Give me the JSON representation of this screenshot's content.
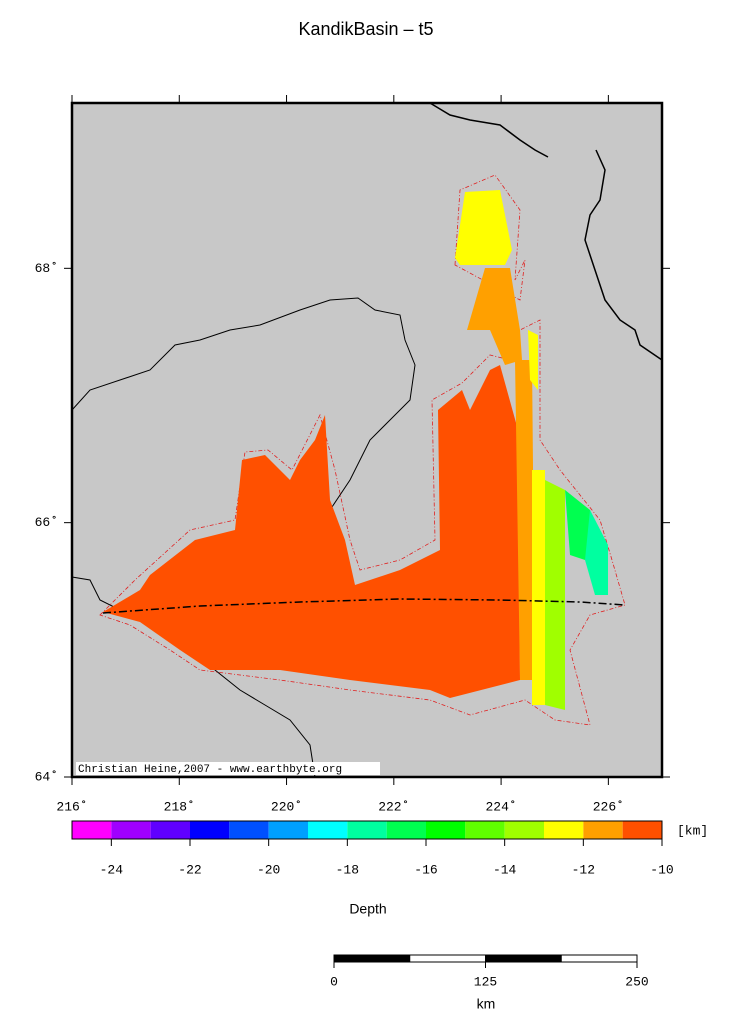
{
  "title": "KandikBasin – t5",
  "map": {
    "xlim": [
      216,
      227
    ],
    "ylim": [
      64,
      69.3
    ],
    "xticks": [
      {
        "value": 216,
        "label": "216˚"
      },
      {
        "value": 218,
        "label": "218˚"
      },
      {
        "value": 220,
        "label": "220˚"
      },
      {
        "value": 222,
        "label": "222˚"
      },
      {
        "value": 224,
        "label": "224˚"
      },
      {
        "value": 226,
        "label": "226˚"
      }
    ],
    "yticks": [
      {
        "value": 64,
        "label": "64˚"
      },
      {
        "value": 66,
        "label": "66˚"
      },
      {
        "value": 68,
        "label": "68˚"
      }
    ],
    "credit": "Christian Heine,2007 - www.earthbyte.org"
  },
  "colorbar": {
    "label": "Depth",
    "unit": "[km]",
    "lim": [
      -25,
      -10
    ],
    "ticks": [
      -24,
      -22,
      -20,
      -18,
      -16,
      -14,
      -12,
      -10
    ],
    "colors": [
      "#ff00ff",
      "#a000ff",
      "#6000ff",
      "#0000ff",
      "#0050ff",
      "#00a0ff",
      "#00ffff",
      "#00ffa0",
      "#00ff50",
      "#00ff00",
      "#60ff00",
      "#a0ff00",
      "#ffff00",
      "#ffa000",
      "#ff5000"
    ]
  },
  "scalebar": {
    "label": "km",
    "lim": [
      0,
      250
    ],
    "ticks": [
      0,
      125,
      250
    ]
  }
}
